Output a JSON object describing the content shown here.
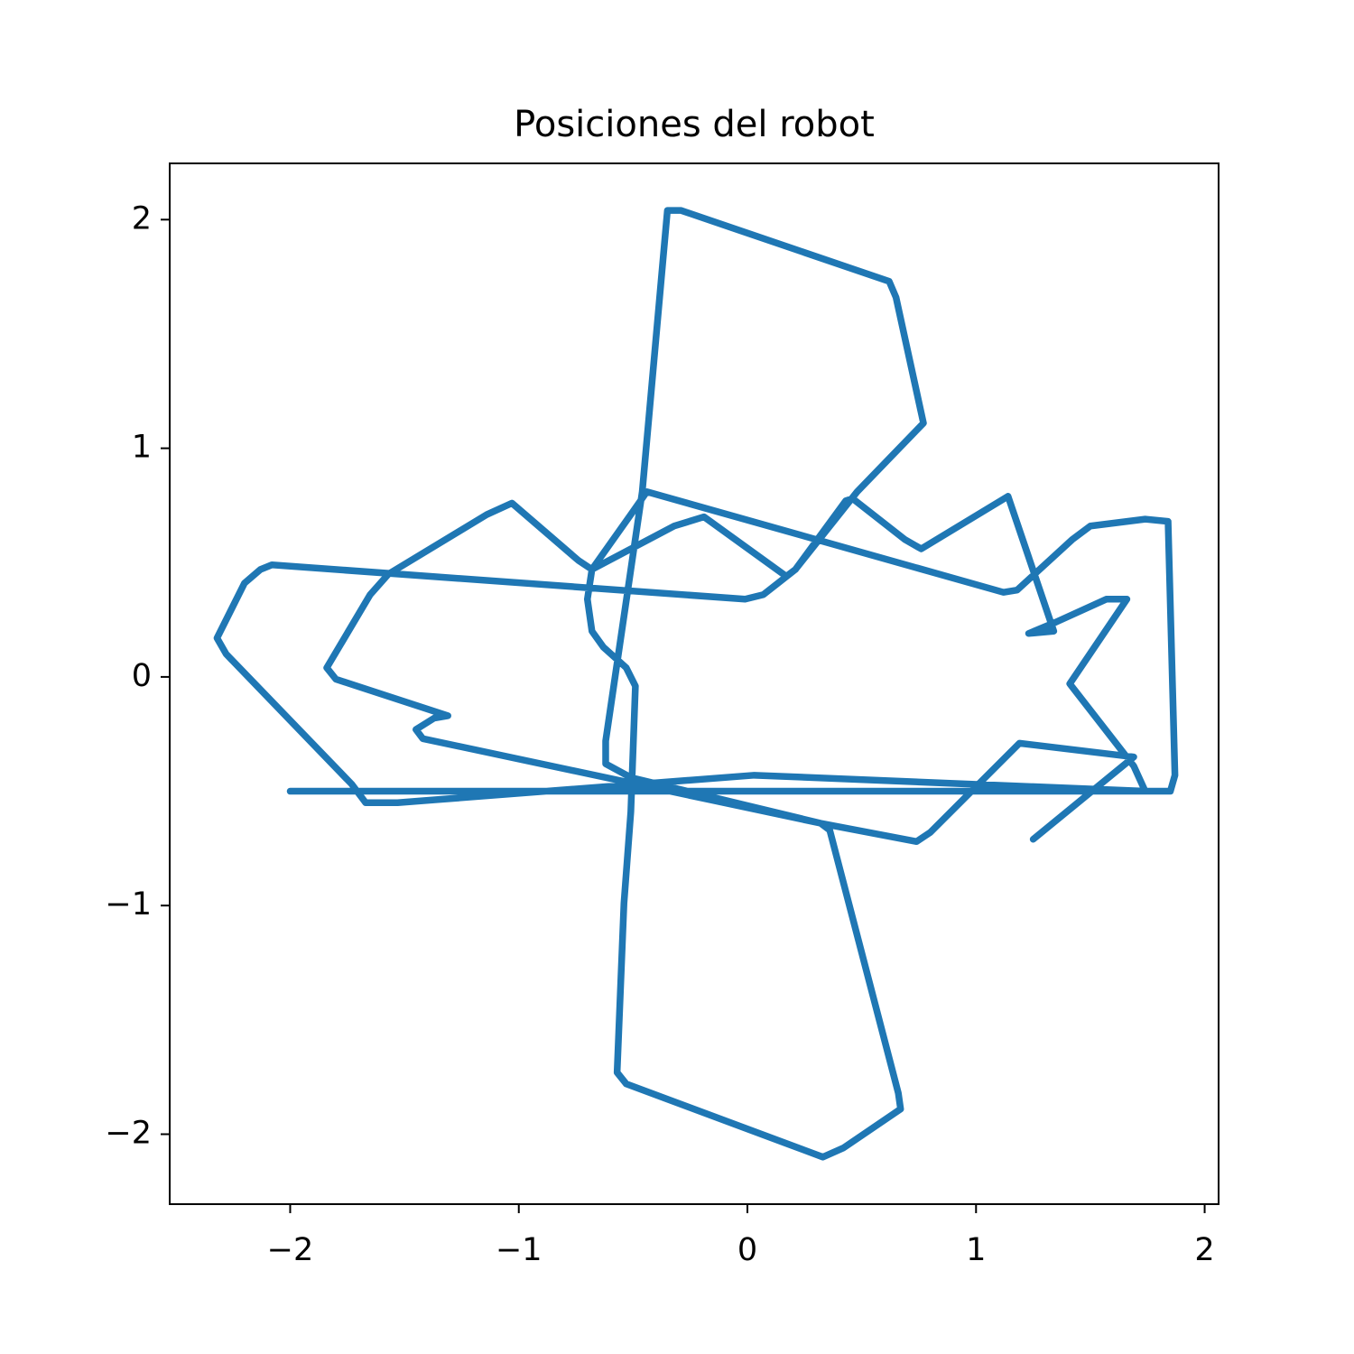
{
  "chart_data": {
    "type": "line",
    "title": "Posiciones del robot",
    "x": [
      -2.0,
      1.85,
      1.87,
      1.84,
      1.74,
      1.5,
      1.42,
      1.18,
      1.12,
      -0.44,
      -0.51,
      -0.68,
      -0.7,
      -0.68,
      -0.63,
      -0.53,
      -0.49,
      -0.51,
      -0.54,
      -0.57,
      -0.53,
      0.33,
      0.42,
      0.67,
      0.66,
      0.36,
      0.32,
      -1.42,
      -1.45,
      -1.37,
      -1.31,
      -1.8,
      -1.84,
      -1.65,
      -1.57,
      -1.14,
      -1.03,
      -0.74,
      -0.68,
      -0.32,
      -0.19,
      0.17,
      0.21,
      0.43,
      0.46,
      0.69,
      0.76,
      1.14,
      1.34,
      1.23,
      1.35,
      1.57,
      1.66,
      1.41,
      1.69,
      1.74,
      0.03,
      -1.53,
      -1.67,
      -1.73,
      -2.28,
      -2.32,
      -2.2,
      -2.13,
      -2.08,
      -0.01,
      0.07,
      0.21,
      0.48,
      0.77,
      0.65,
      0.62,
      -0.29,
      -0.35,
      -0.46,
      -0.62,
      -0.62,
      -0.51,
      0.32,
      0.74,
      0.8,
      1.19,
      1.69,
      1.25
    ],
    "series": [
      {
        "color": "#1f77b4",
        "values": [
          -0.5,
          -0.5,
          -0.43,
          0.68,
          0.69,
          0.66,
          0.6,
          0.38,
          0.37,
          0.81,
          0.71,
          0.47,
          0.34,
          0.2,
          0.13,
          0.04,
          -0.04,
          -0.59,
          -0.99,
          -1.73,
          -1.78,
          -2.1,
          -2.06,
          -1.89,
          -1.82,
          -0.67,
          -0.64,
          -0.27,
          -0.23,
          -0.18,
          -0.17,
          -0.01,
          0.04,
          0.36,
          0.45,
          0.71,
          0.76,
          0.51,
          0.47,
          0.66,
          0.7,
          0.44,
          0.47,
          0.77,
          0.78,
          0.6,
          0.56,
          0.79,
          0.2,
          0.19,
          0.24,
          0.34,
          0.34,
          -0.03,
          -0.39,
          -0.5,
          -0.43,
          -0.55,
          -0.55,
          -0.47,
          0.1,
          0.17,
          0.41,
          0.47,
          0.49,
          0.34,
          0.36,
          0.47,
          0.81,
          1.11,
          1.66,
          1.73,
          2.04,
          2.04,
          0.81,
          -0.28,
          -0.38,
          -0.44,
          -0.64,
          -0.72,
          -0.68,
          -0.29,
          -0.35,
          -0.71
        ]
      }
    ],
    "xlim": [
      -2.527,
      2.061
    ],
    "ylim": [
      -2.306,
      2.246
    ],
    "xticks": [
      {
        "value": -2,
        "label": "−2"
      },
      {
        "value": -1,
        "label": "−1"
      },
      0,
      1,
      2
    ],
    "yticks": [
      {
        "value": -2,
        "label": "−2"
      },
      {
        "value": -1,
        "label": "−1"
      },
      0,
      1,
      2
    ]
  }
}
